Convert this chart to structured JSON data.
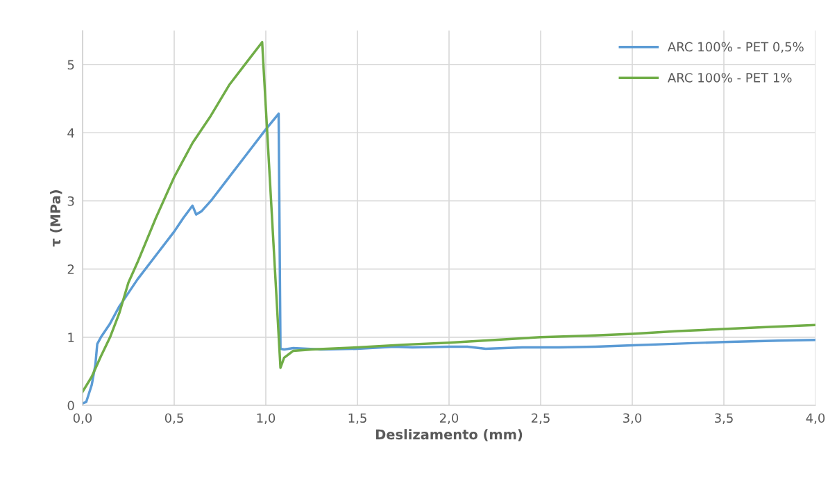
{
  "chart_data": {
    "type": "line",
    "xlabel": "Deslizamento (mm)",
    "ylabel": "τ (MPa)",
    "xlim": [
      0,
      4
    ],
    "xticks": [
      {
        "value": 0,
        "label": "0,0"
      },
      {
        "value": 0.5,
        "label": "0,5"
      },
      {
        "value": 1,
        "label": "1,0"
      },
      {
        "value": 1.5,
        "label": "1,5"
      },
      {
        "value": 2,
        "label": "2,0"
      },
      {
        "value": 2.5,
        "label": "2,5"
      },
      {
        "value": 3,
        "label": "3,0"
      },
      {
        "value": 3.5,
        "label": "3,5"
      },
      {
        "value": 4,
        "label": "4,0"
      }
    ],
    "ylim": [
      0,
      5.5
    ],
    "yticks": [
      0,
      1,
      2,
      3,
      4,
      5
    ],
    "grid": true,
    "legend": "top right",
    "marker": "none",
    "line_style": "solid",
    "series": [
      {
        "name": "ARC 100% - PET 0,5%",
        "color": "#5b9bd5",
        "x": [
          0,
          0.02,
          0.05,
          0.07,
          0.08,
          0.1,
          0.15,
          0.2,
          0.3,
          0.4,
          0.5,
          0.55,
          0.6,
          0.62,
          0.65,
          0.7,
          0.8,
          0.9,
          1.0,
          1.07,
          1.08,
          1.1,
          1.15,
          1.3,
          1.5,
          1.7,
          1.8,
          2.0,
          2.1,
          2.2,
          2.4,
          2.6,
          2.8,
          3.0,
          3.2,
          3.5,
          3.8,
          4.0
        ],
        "values": [
          0.03,
          0.05,
          0.3,
          0.6,
          0.9,
          1.0,
          1.2,
          1.45,
          1.85,
          2.2,
          2.55,
          2.75,
          2.93,
          2.8,
          2.85,
          3.0,
          3.35,
          3.7,
          4.05,
          4.28,
          0.83,
          0.82,
          0.84,
          0.82,
          0.83,
          0.86,
          0.85,
          0.86,
          0.86,
          0.83,
          0.85,
          0.85,
          0.86,
          0.88,
          0.9,
          0.93,
          0.95,
          0.96
        ]
      },
      {
        "name": "ARC 100% - PET 1%",
        "color": "#70ad47",
        "x": [
          0,
          0.05,
          0.1,
          0.15,
          0.2,
          0.25,
          0.3,
          0.4,
          0.5,
          0.6,
          0.7,
          0.8,
          0.9,
          0.98,
          1.08,
          1.1,
          1.15,
          1.25,
          1.5,
          1.75,
          2.0,
          2.25,
          2.5,
          2.75,
          3.0,
          3.25,
          3.5,
          3.75,
          4.0
        ],
        "values": [
          0.2,
          0.42,
          0.72,
          1.0,
          1.35,
          1.8,
          2.1,
          2.75,
          3.35,
          3.85,
          4.25,
          4.7,
          5.05,
          5.33,
          0.55,
          0.7,
          0.8,
          0.82,
          0.85,
          0.89,
          0.92,
          0.96,
          1.0,
          1.02,
          1.05,
          1.09,
          1.12,
          1.15,
          1.18
        ]
      }
    ]
  }
}
